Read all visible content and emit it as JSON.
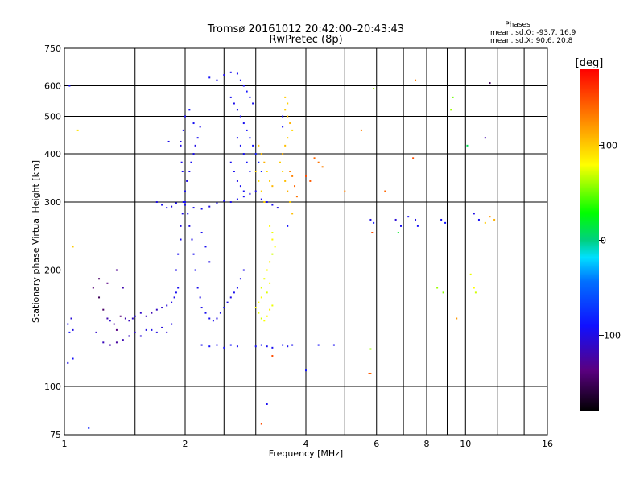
{
  "chart_data": {
    "type": "scatter",
    "title": "Tromsø 20161012 20:42:00–20:43:43",
    "subtitle": "RwPretec (8p)",
    "xlabel": "Frequency [MHz]",
    "ylabel": "Stationary phase Virtual Height [km]",
    "x_scale": "log",
    "y_scale": "log",
    "xlim": [
      1,
      16
    ],
    "ylim": [
      75,
      750
    ],
    "x_ticks": [
      1,
      2,
      4,
      6,
      8,
      10,
      16
    ],
    "x_tick_labels": [
      "1",
      "2",
      "4",
      "6",
      "8",
      "10",
      "16"
    ],
    "x_grid": [
      1.5,
      2,
      2.5,
      3,
      4,
      5,
      6,
      7,
      8,
      9,
      10,
      12,
      14
    ],
    "y_ticks": [
      75,
      100,
      200,
      300,
      400,
      500,
      600,
      750
    ],
    "y_tick_labels": [
      "75",
      "100",
      "200",
      "300",
      "400",
      "500",
      "600",
      "750"
    ],
    "y_grid": [
      100,
      200,
      300,
      400,
      500,
      600
    ],
    "grid": true,
    "legend": {
      "title": "Phases",
      "lines": [
        "mean, sd,O: -93.7, 16.9",
        "mean, sd,X:  90.6, 20.8"
      ],
      "position": "top-right"
    },
    "colorbar": {
      "label": "[deg]",
      "range": [
        -180,
        180
      ],
      "ticks": [
        100,
        0,
        -100
      ],
      "tick_labels": [
        "100",
        "0",
        "-100"
      ]
    },
    "value_meaning": "each point: [frequency MHz, virtual height km, phase deg]",
    "points": [
      [
        1.02,
        145,
        -95
      ],
      [
        1.03,
        138,
        -90
      ],
      [
        1.05,
        140,
        -100
      ],
      [
        1.02,
        115,
        -98
      ],
      [
        1.05,
        118,
        -92
      ],
      [
        1.04,
        150,
        -105
      ],
      [
        1.03,
        600,
        -95
      ],
      [
        1.08,
        460,
        90
      ],
      [
        1.15,
        78,
        -80
      ],
      [
        1.05,
        230,
        100
      ],
      [
        1.18,
        180,
        -140
      ],
      [
        1.22,
        170,
        -150
      ],
      [
        1.25,
        158,
        -145
      ],
      [
        1.28,
        150,
        -120
      ],
      [
        1.3,
        148,
        -110
      ],
      [
        1.33,
        145,
        -125
      ],
      [
        1.35,
        140,
        -135
      ],
      [
        1.38,
        152,
        -140
      ],
      [
        1.42,
        150,
        -120
      ],
      [
        1.45,
        148,
        -115
      ],
      [
        1.48,
        150,
        -110
      ],
      [
        1.5,
        152,
        -105
      ],
      [
        1.22,
        190,
        -145
      ],
      [
        1.28,
        185,
        -135
      ],
      [
        1.35,
        200,
        -130
      ],
      [
        1.4,
        180,
        -120
      ],
      [
        1.2,
        138,
        -110
      ],
      [
        1.25,
        130,
        -115
      ],
      [
        1.3,
        128,
        -120
      ],
      [
        1.35,
        130,
        -125
      ],
      [
        1.4,
        132,
        -118
      ],
      [
        1.45,
        135,
        -112
      ],
      [
        1.5,
        138,
        -108
      ],
      [
        1.55,
        135,
        -105
      ],
      [
        1.6,
        140,
        -100
      ],
      [
        1.65,
        140,
        -98
      ],
      [
        1.7,
        138,
        -102
      ],
      [
        1.75,
        142,
        -104
      ],
      [
        1.8,
        138,
        -106
      ],
      [
        1.85,
        145,
        -100
      ],
      [
        1.55,
        155,
        -110
      ],
      [
        1.6,
        152,
        -115
      ],
      [
        1.65,
        155,
        -118
      ],
      [
        1.7,
        158,
        -112
      ],
      [
        1.75,
        160,
        -108
      ],
      [
        1.8,
        162,
        -104
      ],
      [
        1.85,
        165,
        -100
      ],
      [
        1.88,
        170,
        -98
      ],
      [
        1.9,
        175,
        -95
      ],
      [
        1.92,
        180,
        -96
      ],
      [
        1.9,
        200,
        -98
      ],
      [
        1.92,
        220,
        -95
      ],
      [
        1.95,
        240,
        -97
      ],
      [
        1.95,
        260,
        -100
      ],
      [
        1.97,
        280,
        -98
      ],
      [
        1.98,
        300,
        -95
      ],
      [
        2.0,
        320,
        -96
      ],
      [
        2.02,
        340,
        -100
      ],
      [
        2.05,
        360,
        -98
      ],
      [
        2.07,
        380,
        -95
      ],
      [
        2.1,
        400,
        -97
      ],
      [
        2.12,
        420,
        -100
      ],
      [
        2.15,
        440,
        -95
      ],
      [
        2.18,
        470,
        -98
      ],
      [
        2.0,
        500,
        -96
      ],
      [
        2.05,
        520,
        -92
      ],
      [
        2.1,
        480,
        -94
      ],
      [
        1.98,
        460,
        -95
      ],
      [
        1.95,
        430,
        -100
      ],
      [
        1.96,
        380,
        -98
      ],
      [
        1.97,
        360,
        -96
      ],
      [
        2.0,
        300,
        -95
      ],
      [
        2.03,
        280,
        -97
      ],
      [
        2.05,
        260,
        -100
      ],
      [
        2.08,
        240,
        -98
      ],
      [
        2.1,
        220,
        -96
      ],
      [
        2.12,
        200,
        -95
      ],
      [
        2.15,
        180,
        -97
      ],
      [
        2.18,
        170,
        -100
      ],
      [
        2.2,
        160,
        -98
      ],
      [
        2.25,
        155,
        -96
      ],
      [
        2.3,
        150,
        -95
      ],
      [
        2.35,
        148,
        -97
      ],
      [
        2.4,
        150,
        -100
      ],
      [
        2.45,
        155,
        -96
      ],
      [
        2.5,
        160,
        -95
      ],
      [
        2.55,
        165,
        -98
      ],
      [
        2.6,
        170,
        -100
      ],
      [
        2.65,
        175,
        -96
      ],
      [
        2.7,
        180,
        -95
      ],
      [
        2.75,
        190,
        -97
      ],
      [
        2.8,
        200,
        -98
      ],
      [
        2.3,
        210,
        -100
      ],
      [
        2.25,
        230,
        -96
      ],
      [
        2.2,
        250,
        -95
      ],
      [
        1.7,
        300,
        -98
      ],
      [
        1.75,
        295,
        -96
      ],
      [
        1.8,
        290,
        -95
      ],
      [
        1.85,
        292,
        -100
      ],
      [
        1.9,
        298,
        -97
      ],
      [
        2.0,
        295,
        -95
      ],
      [
        2.1,
        290,
        -98
      ],
      [
        2.2,
        288,
        -96
      ],
      [
        2.3,
        292,
        -100
      ],
      [
        2.4,
        298,
        -95
      ],
      [
        2.5,
        302,
        -97
      ],
      [
        2.6,
        300,
        -98
      ],
      [
        2.7,
        305,
        -96
      ],
      [
        2.8,
        310,
        -95
      ],
      [
        2.9,
        315,
        -100
      ],
      [
        3.0,
        320,
        -97
      ],
      [
        3.1,
        305,
        -95
      ],
      [
        3.2,
        300,
        -98
      ],
      [
        3.3,
        295,
        -96
      ],
      [
        3.4,
        290,
        -100
      ],
      [
        2.3,
        630,
        -92
      ],
      [
        2.4,
        620,
        -95
      ],
      [
        2.5,
        640,
        -98
      ],
      [
        2.6,
        650,
        -96
      ],
      [
        2.7,
        645,
        -94
      ],
      [
        2.75,
        620,
        -92
      ],
      [
        2.8,
        600,
        -95
      ],
      [
        2.85,
        580,
        -90
      ],
      [
        2.9,
        560,
        -93
      ],
      [
        2.95,
        540,
        -96
      ],
      [
        2.6,
        560,
        -95
      ],
      [
        2.65,
        540,
        -98
      ],
      [
        2.7,
        520,
        -96
      ],
      [
        2.75,
        500,
        -94
      ],
      [
        2.8,
        480,
        -95
      ],
      [
        2.85,
        460,
        -92
      ],
      [
        2.9,
        440,
        -90
      ],
      [
        2.95,
        420,
        -88
      ],
      [
        3.0,
        400,
        -85
      ],
      [
        3.05,
        380,
        -82
      ],
      [
        3.1,
        360,
        -80
      ],
      [
        2.7,
        440,
        -95
      ],
      [
        2.75,
        420,
        -96
      ],
      [
        2.8,
        400,
        -94
      ],
      [
        2.85,
        380,
        -92
      ],
      [
        2.9,
        360,
        -95
      ],
      [
        2.6,
        380,
        -96
      ],
      [
        2.65,
        360,
        -95
      ],
      [
        2.7,
        340,
        -98
      ],
      [
        2.75,
        330,
        -96
      ],
      [
        2.8,
        320,
        -94
      ],
      [
        2.2,
        128,
        -95
      ],
      [
        2.3,
        127,
        -92
      ],
      [
        2.4,
        128,
        -96
      ],
      [
        2.5,
        126,
        -94
      ],
      [
        2.6,
        128,
        -90
      ],
      [
        2.7,
        127,
        -95
      ],
      [
        3.0,
        127,
        -94
      ],
      [
        3.1,
        128,
        -92
      ],
      [
        3.2,
        127,
        -96
      ],
      [
        3.3,
        126,
        -95
      ],
      [
        3.5,
        128,
        -92
      ],
      [
        3.6,
        127,
        -95
      ],
      [
        3.7,
        128,
        -96
      ],
      [
        4.3,
        128,
        -92
      ],
      [
        4.7,
        128,
        -95
      ],
      [
        3.05,
        420,
        100
      ],
      [
        3.1,
        400,
        105
      ],
      [
        3.15,
        380,
        110
      ],
      [
        3.2,
        360,
        95
      ],
      [
        3.25,
        340,
        100
      ],
      [
        3.3,
        330,
        108
      ],
      [
        3.0,
        360,
        95
      ],
      [
        3.05,
        340,
        92
      ],
      [
        3.1,
        320,
        98
      ],
      [
        3.15,
        300,
        100
      ],
      [
        3.55,
        520,
        100
      ],
      [
        3.6,
        500,
        105
      ],
      [
        3.65,
        480,
        110
      ],
      [
        3.7,
        460,
        95
      ],
      [
        3.6,
        440,
        100
      ],
      [
        3.55,
        420,
        105
      ],
      [
        3.5,
        400,
        110
      ],
      [
        3.45,
        380,
        100
      ],
      [
        3.5,
        360,
        95
      ],
      [
        3.55,
        340,
        105
      ],
      [
        3.6,
        320,
        110
      ],
      [
        3.65,
        300,
        100
      ],
      [
        3.7,
        280,
        105
      ],
      [
        3.55,
        560,
        100
      ],
      [
        3.6,
        540,
        98
      ],
      [
        3.7,
        350,
        130
      ],
      [
        3.75,
        330,
        140
      ],
      [
        3.8,
        310,
        135
      ],
      [
        3.65,
        360,
        128
      ],
      [
        3.25,
        260,
        80
      ],
      [
        3.3,
        250,
        75
      ],
      [
        3.3,
        240,
        82
      ],
      [
        3.35,
        230,
        78
      ],
      [
        3.3,
        220,
        70
      ],
      [
        3.25,
        210,
        85
      ],
      [
        3.2,
        200,
        80
      ],
      [
        3.15,
        190,
        75
      ],
      [
        3.1,
        180,
        72
      ],
      [
        3.1,
        170,
        78
      ],
      [
        3.05,
        165,
        80
      ],
      [
        3.0,
        160,
        82
      ],
      [
        3.05,
        155,
        75
      ],
      [
        3.1,
        150,
        70
      ],
      [
        3.15,
        148,
        78
      ],
      [
        3.2,
        152,
        80
      ],
      [
        3.25,
        158,
        85
      ],
      [
        3.3,
        162,
        75
      ],
      [
        3.2,
        175,
        72
      ],
      [
        3.25,
        185,
        78
      ],
      [
        4.2,
        390,
        140
      ],
      [
        4.3,
        380,
        135
      ],
      [
        4.4,
        370,
        130
      ],
      [
        4.0,
        350,
        150
      ],
      [
        4.1,
        340,
        145
      ],
      [
        5.5,
        460,
        130
      ],
      [
        5.0,
        320,
        130
      ],
      [
        5.8,
        270,
        -100
      ],
      [
        5.9,
        265,
        -90
      ],
      [
        5.85,
        250,
        150
      ],
      [
        5.8,
        125,
        60
      ],
      [
        5.75,
        108,
        150
      ],
      [
        5.8,
        108,
        140
      ],
      [
        5.9,
        590,
        60
      ],
      [
        6.3,
        320,
        140
      ],
      [
        6.7,
        270,
        -105
      ],
      [
        6.9,
        260,
        -95
      ],
      [
        6.8,
        250,
        20
      ],
      [
        7.2,
        275,
        -95
      ],
      [
        7.5,
        270,
        -100
      ],
      [
        7.6,
        260,
        -92
      ],
      [
        7.4,
        390,
        150
      ],
      [
        7.5,
        620,
        130
      ],
      [
        8.7,
        270,
        -95
      ],
      [
        8.9,
        265,
        -90
      ],
      [
        9.2,
        520,
        60
      ],
      [
        9.3,
        560,
        50
      ],
      [
        8.5,
        180,
        60
      ],
      [
        8.8,
        175,
        55
      ],
      [
        9.5,
        150,
        120
      ],
      [
        10.5,
        180,
        80
      ],
      [
        10.6,
        175,
        70
      ],
      [
        10.3,
        195,
        75
      ],
      [
        10.1,
        420,
        10
      ],
      [
        10.5,
        280,
        -100
      ],
      [
        10.8,
        270,
        -95
      ],
      [
        11.2,
        265,
        100
      ],
      [
        11.5,
        275,
        120
      ],
      [
        11.8,
        270,
        110
      ],
      [
        11.5,
        610,
        -150
      ],
      [
        11.2,
        440,
        -120
      ],
      [
        3.5,
        500,
        -95
      ],
      [
        3.5,
        470,
        -92
      ],
      [
        3.6,
        260,
        -90
      ],
      [
        3.2,
        90,
        -95
      ],
      [
        3.1,
        80,
        150
      ],
      [
        3.3,
        120,
        150
      ],
      [
        4.0,
        110,
        -90
      ],
      [
        1.95,
        420,
        -100
      ],
      [
        1.82,
        430,
        -98
      ]
    ]
  }
}
